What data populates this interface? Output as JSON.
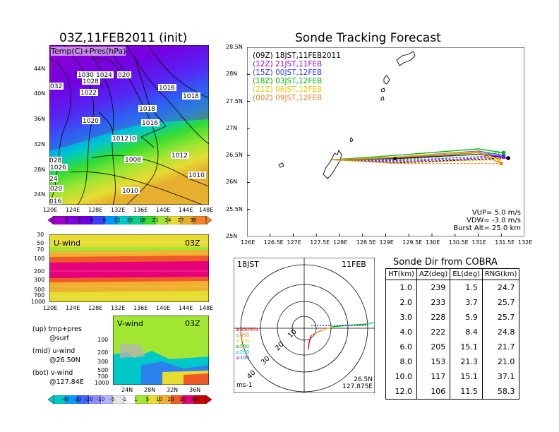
{
  "left": {
    "map_title": "03Z,11FEB2011 (init)",
    "map_label": "Temp(C)+Pres(hPa)",
    "lat_ticks": [
      "44N",
      "40N",
      "36N",
      "32N",
      "28N",
      "24N"
    ],
    "lon_ticks": [
      "120E",
      "124E",
      "128E",
      "132E",
      "136E",
      "140E",
      "144E",
      "148E"
    ],
    "isobar_labels": [
      "1030",
      "1024",
      "1028",
      "020",
      "1016",
      "1018",
      "032",
      "1022",
      "1018",
      "1020",
      "1016",
      "1012",
      "0",
      "1008",
      "1012",
      "028",
      "1026",
      "1010",
      "24",
      "1010",
      "020",
      "016"
    ],
    "colorbar_ticks": [
      "0",
      "3",
      "6",
      "9",
      "12",
      "15",
      "18",
      "21",
      "24",
      "27",
      "30"
    ],
    "colorbar_colors": [
      "#a000c8",
      "#8200dc",
      "#6e00e6",
      "#3c3cff",
      "#0096ff",
      "#00c8c8",
      "#00d28c",
      "#32dc32",
      "#a0e632",
      "#e6dc32",
      "#e6af2d",
      "#f08228"
    ],
    "uwind": {
      "label": "U-wind",
      "time": "03Z",
      "y_ticks": [
        "30",
        "50",
        "70",
        "100",
        "200",
        "300",
        "500",
        "700",
        "1000"
      ],
      "x_ticks": [
        "120E",
        "124E",
        "128E",
        "132E",
        "136E",
        "140E",
        "144E",
        "148E"
      ]
    },
    "vwind": {
      "label": "V-wind",
      "time": "03Z",
      "y_ticks": [
        "100",
        "200",
        "300",
        "500",
        "700",
        "1000"
      ],
      "x_ticks": [
        "24N",
        "28N",
        "32N",
        "36N"
      ]
    },
    "notes": [
      {
        "a": "(up) tmp+pres",
        "b": "@surf"
      },
      {
        "a": "(mid) u-wind",
        "b": "@26.50N"
      },
      {
        "a": "(bot) v-wind",
        "b": "@127.84E"
      }
    ],
    "wind_colorbar_ticks": [
      "-40",
      "-30",
      "-20",
      "-10",
      "-5",
      "-1",
      "1",
      "5",
      "10",
      "20",
      "30",
      "40"
    ],
    "wind_colorbar_colors": [
      "#00c8c8",
      "#00a0ff",
      "#3c64ff",
      "#8c8cff",
      "#b4b4ff",
      "#e6e6e6",
      "#ffffff",
      "#a0e632",
      "#e6dc32",
      "#f0af2d",
      "#f05a28",
      "#e6007a",
      "#c80000"
    ]
  },
  "tracking": {
    "title": "Sonde Tracking Forecast",
    "legend": [
      {
        "label": "(09Z)  18JST,11FEB2011",
        "color": "#000000"
      },
      {
        "label": "(12Z)  21JST,11FEB",
        "color": "#a000c8"
      },
      {
        "label": "(15Z)  00JST,12FEB",
        "color": "#3c3cff"
      },
      {
        "label": "(18Z)  03JST,12FEB",
        "color": "#00b400"
      },
      {
        "label": "(21Z)  06JST,12FEB",
        "color": "#e6c800"
      },
      {
        "label": "(00Z)  09JST,12FEB",
        "color": "#f08228"
      }
    ],
    "params": {
      "vup": "VUP=  5.0  m/s",
      "vdw": "VDW= -3.0  m/s",
      "burst": "Burst Alt=  25.0  km"
    }
  },
  "chart_data": {
    "type": "line",
    "title": "Sonde Tracking Forecast",
    "xlabel": "",
    "ylabel": "",
    "xlim": [
      126,
      132
    ],
    "ylim": [
      25,
      28.5
    ],
    "x_ticks": [
      "126E",
      "126.5E",
      "127E",
      "127.5E",
      "128E",
      "128.5E",
      "129E",
      "129.5E",
      "130E",
      "130.5E",
      "131E",
      "131.5E",
      "132E"
    ],
    "y_ticks": [
      "25N",
      "25.5N",
      "26N",
      "26.5N",
      "27N",
      "27.5N",
      "28N",
      "28.5N"
    ],
    "grid": false,
    "series": [
      {
        "name": "(09Z)  18JST,11FEB2011",
        "color": "#000000",
        "ascent": [
          [
            127.85,
            26.42
          ],
          [
            129.2,
            26.44
          ],
          [
            131.0,
            26.52
          ],
          [
            131.65,
            26.45
          ]
        ],
        "descent": [
          [
            131.65,
            26.45
          ],
          [
            129.2,
            26.36
          ],
          [
            127.85,
            26.42
          ]
        ],
        "burst": [
          131.65,
          26.45
        ]
      },
      {
        "name": "(12Z)  21JST,11FEB",
        "color": "#a000c8",
        "ascent": [
          [
            127.85,
            26.42
          ],
          [
            129.2,
            26.45
          ],
          [
            131.0,
            26.55
          ],
          [
            131.55,
            26.47
          ]
        ],
        "descent": [
          [
            131.55,
            26.47
          ],
          [
            129.2,
            26.38
          ],
          [
            127.85,
            26.42
          ]
        ],
        "burst": [
          131.55,
          26.47
        ]
      },
      {
        "name": "(15Z)  00JST,12FEB",
        "color": "#3c3cff",
        "ascent": [
          [
            127.85,
            26.42
          ],
          [
            129.2,
            26.47
          ],
          [
            131.0,
            26.58
          ],
          [
            131.55,
            26.5
          ]
        ],
        "descent": [
          [
            131.55,
            26.5
          ],
          [
            129.2,
            26.4
          ],
          [
            127.85,
            26.42
          ]
        ],
        "burst": [
          131.55,
          26.5
        ]
      },
      {
        "name": "(18Z)  03JST,12FEB",
        "color": "#00b400",
        "ascent": [
          [
            127.85,
            26.42
          ],
          [
            129.2,
            26.5
          ],
          [
            131.0,
            26.62
          ],
          [
            131.55,
            26.55
          ]
        ],
        "descent": [
          [
            131.55,
            26.55
          ],
          [
            129.2,
            26.42
          ],
          [
            127.85,
            26.42
          ]
        ],
        "burst": [
          131.55,
          26.55
        ]
      },
      {
        "name": "(21Z)  06JST,12FEB",
        "color": "#e6c800",
        "ascent": [
          [
            127.85,
            26.42
          ],
          [
            129.2,
            26.47
          ],
          [
            131.0,
            26.57
          ],
          [
            131.45,
            26.42
          ]
        ],
        "descent": [
          [
            131.45,
            26.42
          ],
          [
            129.2,
            26.36
          ],
          [
            127.85,
            26.42
          ]
        ],
        "burst": [
          131.45,
          26.42
        ]
      },
      {
        "name": "(00Z)  09JST,12FEB",
        "color": "#f08228",
        "ascent": [
          [
            127.85,
            26.42
          ],
          [
            129.2,
            26.46
          ],
          [
            131.0,
            26.55
          ],
          [
            131.5,
            26.35
          ]
        ],
        "descent": [
          [
            131.5,
            26.35
          ],
          [
            129.2,
            26.35
          ],
          [
            127.85,
            26.42
          ]
        ],
        "burst": [
          131.5,
          26.35
        ]
      }
    ]
  },
  "polar": {
    "time": "18JST",
    "date": "11FEB",
    "ring_labels": [
      "10",
      "20",
      "30",
      "40"
    ],
    "pressure_legend": [
      {
        "label": "≥850hPa",
        "color": "#e60000"
      },
      {
        "label": "≥850",
        "color": "#f08228"
      },
      {
        "label": "≥700",
        "color": "#e6c800"
      },
      {
        "label": "≥500",
        "color": "#00b400"
      },
      {
        "label": "≥250",
        "color": "#00c8c8"
      },
      {
        "label": "≥100",
        "color": "#3c3cff"
      }
    ],
    "units": "ms-1",
    "pos_lat": "26.5N",
    "pos_lon": "127.875E"
  },
  "sonde_dir": {
    "title": "Sonde Dir from COBRA",
    "headers": [
      "HT(km)",
      "AZ(deg)",
      "EL(deg)",
      "RNG(km)"
    ],
    "rows": [
      [
        "1.0",
        "239",
        "1.5",
        "24.7"
      ],
      [
        "2.0",
        "233",
        "3.7",
        "25.7"
      ],
      [
        "3.0",
        "228",
        "5.9",
        "25.7"
      ],
      [
        "4.0",
        "222",
        "8.4",
        "24.8"
      ],
      [
        "6.0",
        "205",
        "15.1",
        "21.7"
      ],
      [
        "8.0",
        "153",
        "21.3",
        "21.0"
      ],
      [
        "10.0",
        "117",
        "15.1",
        "37.1"
      ],
      [
        "12.0",
        "106",
        "11.5",
        "58.3"
      ]
    ]
  }
}
